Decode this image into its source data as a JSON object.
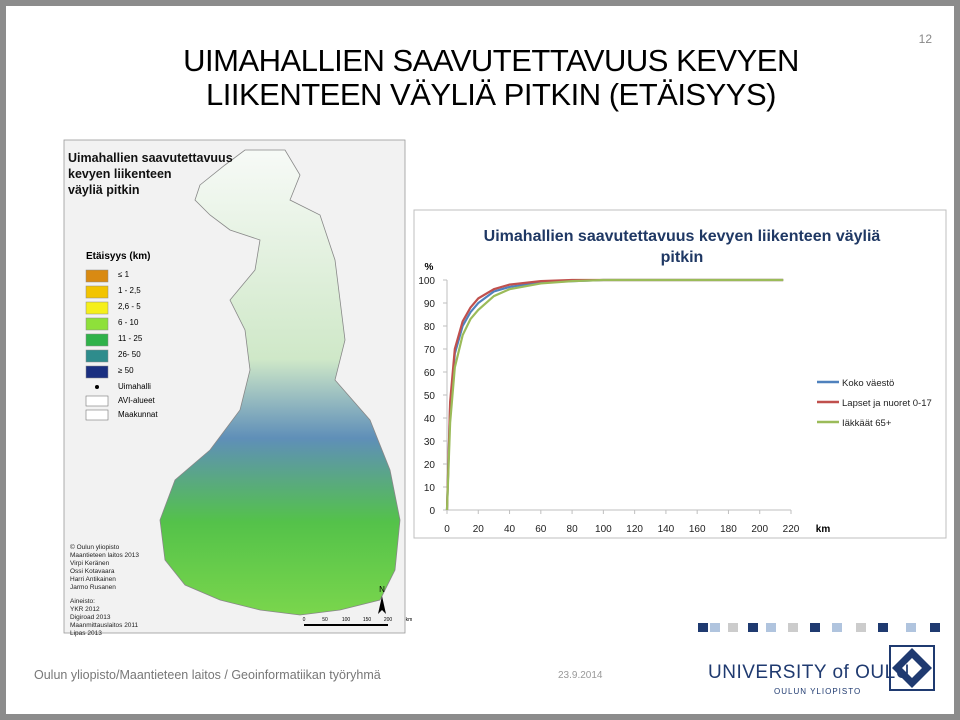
{
  "slide": {
    "page_number": "12",
    "title_lines": [
      "UIMAHALLIEN SAAVUTETTAVUUS KEVYEN",
      "LIIKENTEEN VÄYLIÄ PITKIN (ETÄISYYS)"
    ],
    "footer": "Oulun yliopisto/Maantieteen laitos / Geoinformatiikan työryhmä",
    "date": "23.9.2014",
    "logo_main": "UNIVERSITY of OULU",
    "logo_sub": "OULUN YLIOPISTO"
  },
  "map": {
    "heading_lines": [
      "Uimahallien saavutettavuus",
      "kevyen liikenteen",
      "väyliä pitkin"
    ],
    "legend_title": "Etäisyys (km)",
    "legend": [
      {
        "label": "≤ 1",
        "color": "#d98a12"
      },
      {
        "label": "1 - 2,5",
        "color": "#f2c400"
      },
      {
        "label": "2,6 - 5",
        "color": "#f5ef1a"
      },
      {
        "label": "6 - 10",
        "color": "#8ee03a"
      },
      {
        "label": "11 - 25",
        "color": "#2fb24a"
      },
      {
        "label": "26- 50",
        "color": "#2e8c8c"
      },
      {
        "label": "≥ 50",
        "color": "#1a2f80"
      }
    ],
    "symbols": [
      "Uimahalli",
      "AVI-alueet",
      "Maakunnat"
    ],
    "credits": [
      "© Oulun yliopisto",
      "Maantieteen laitos 2013",
      "Virpi Keränen",
      "Ossi Kotavaara",
      "Harri Antikainen",
      "Jarmo Rusanen"
    ],
    "sources": [
      "Aineisto:",
      "YKR 2012",
      "Digiroad 2013",
      "Maanmittauslaitos 2011",
      "Lipas 2013"
    ],
    "north": "N",
    "scale_labels": [
      "0",
      "50",
      "100",
      "150",
      "200",
      "km"
    ]
  },
  "chart_data": {
    "type": "line",
    "title": "Uimahallien saavutettavuus kevyen liikenteen väyliä pitkin",
    "y_label": "%",
    "x_label": "km",
    "x": [
      0,
      2,
      5,
      10,
      15,
      20,
      30,
      40,
      60,
      80,
      100,
      120,
      140,
      160,
      180,
      200,
      215
    ],
    "series": [
      {
        "name": "Koko väestö",
        "color": "#4f81bd",
        "values": [
          0,
          45,
          68,
          80,
          86,
          90,
          95,
          97,
          99,
          99.5,
          100,
          100,
          100,
          100,
          100,
          100,
          100
        ]
      },
      {
        "name": "Lapset ja nuoret 0-17",
        "color": "#c0504d",
        "values": [
          0,
          47,
          70,
          82,
          88,
          92,
          96,
          98,
          99.5,
          100,
          100,
          100,
          100,
          100,
          100,
          100,
          100
        ]
      },
      {
        "name": "Iäkkäät 65+",
        "color": "#9bbb59",
        "values": [
          0,
          38,
          62,
          76,
          83,
          87,
          93,
          96,
          98.5,
          99.5,
          100,
          100,
          100,
          100,
          100,
          100,
          100
        ]
      }
    ],
    "xlim": [
      0,
      220
    ],
    "ylim": [
      0,
      100
    ],
    "xticks": [
      0,
      20,
      40,
      60,
      80,
      100,
      120,
      140,
      160,
      180,
      200,
      220
    ],
    "yticks": [
      0,
      10,
      20,
      30,
      40,
      50,
      60,
      70,
      80,
      90,
      100
    ],
    "grid": false
  }
}
